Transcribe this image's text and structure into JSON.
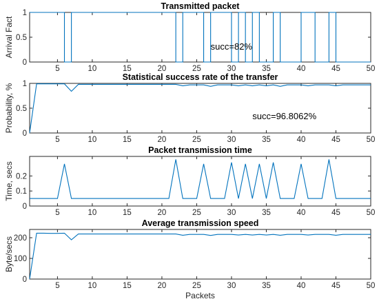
{
  "figure": {
    "xlabel": "Packets",
    "line_color": "#0072bd"
  },
  "chart_data": [
    {
      "type": "line",
      "title": "Transmitted packet",
      "xlabel": "",
      "ylabel": "Arrival Fact",
      "xlim": [
        1,
        50
      ],
      "ylim": [
        0,
        1
      ],
      "xticks": [
        5,
        10,
        15,
        20,
        25,
        30,
        35,
        40,
        45,
        50
      ],
      "yticks": [
        0,
        0.5,
        1
      ],
      "ytick_labels": [
        "0",
        "0.5",
        "1"
      ],
      "grid": false,
      "annotation": {
        "text": "succ=82%",
        "x": 27,
        "y": 0.25
      },
      "series": [
        {
          "x": [
            1,
            2,
            3,
            4,
            5,
            6,
            6,
            7,
            7,
            22,
            22,
            23,
            23,
            26,
            26,
            27,
            27,
            30,
            30,
            31,
            31,
            32,
            32,
            33,
            33,
            34,
            34,
            36,
            36,
            37,
            37,
            40,
            40,
            42,
            42,
            44,
            44,
            45,
            45,
            50
          ],
          "values": [
            1,
            1,
            1,
            1,
            1,
            1,
            0,
            0,
            1,
            1,
            0,
            0,
            1,
            1,
            0,
            0,
            1,
            1,
            0,
            0,
            1,
            1,
            0,
            0,
            1,
            1,
            0,
            0,
            1,
            1,
            0,
            0,
            1,
            1,
            0,
            0,
            1,
            1,
            0,
            0
          ]
        }
      ]
    },
    {
      "type": "line",
      "title": "Statistical success rate of the transfer",
      "xlabel": "",
      "ylabel": "Probability, %",
      "xlim": [
        1,
        50
      ],
      "ylim": [
        0,
        1
      ],
      "xticks": [
        5,
        10,
        15,
        20,
        25,
        30,
        35,
        40,
        45,
        50
      ],
      "yticks": [
        0,
        0.5,
        1
      ],
      "ytick_labels": [
        "0",
        "0.5",
        "1"
      ],
      "grid": false,
      "annotation": {
        "text": "succ=96.8062%",
        "x": 33,
        "y": 0.28
      },
      "series": [
        {
          "x": [
            1,
            2,
            3,
            4,
            5,
            6,
            7,
            8,
            9,
            10,
            11,
            12,
            13,
            14,
            15,
            16,
            17,
            18,
            19,
            20,
            21,
            22,
            23,
            24,
            25,
            26,
            27,
            28,
            29,
            30,
            31,
            32,
            33,
            34,
            35,
            36,
            37,
            38,
            39,
            40,
            41,
            42,
            43,
            44,
            45,
            46,
            47,
            48,
            49,
            50
          ],
          "values": [
            0,
            0.99,
            0.99,
            0.99,
            0.99,
            0.99,
            0.84,
            0.98,
            0.98,
            0.98,
            0.98,
            0.98,
            0.98,
            0.98,
            0.98,
            0.98,
            0.98,
            0.98,
            0.98,
            0.98,
            0.98,
            0.98,
            0.95,
            0.97,
            0.97,
            0.97,
            0.94,
            0.97,
            0.97,
            0.97,
            0.95,
            0.97,
            0.95,
            0.97,
            0.95,
            0.97,
            0.94,
            0.97,
            0.97,
            0.97,
            0.95,
            0.97,
            0.97,
            0.97,
            0.95,
            0.97,
            0.97,
            0.97,
            0.97,
            0.97
          ]
        }
      ]
    },
    {
      "type": "line",
      "title": "Packet transmission time",
      "xlabel": "",
      "ylabel": "Time, secs",
      "xlim": [
        1,
        50
      ],
      "ylim": [
        0,
        0.33
      ],
      "xticks": [
        5,
        10,
        15,
        20,
        25,
        30,
        35,
        40,
        45,
        50
      ],
      "yticks": [
        0,
        0.1,
        0.2
      ],
      "ytick_labels": [
        "0",
        "0.1",
        "0.2"
      ],
      "grid": false,
      "series": [
        {
          "x": [
            1,
            2,
            3,
            4,
            5,
            6,
            7,
            8,
            9,
            10,
            11,
            12,
            13,
            14,
            15,
            16,
            17,
            18,
            19,
            20,
            21,
            22,
            23,
            24,
            25,
            26,
            27,
            28,
            29,
            30,
            31,
            32,
            33,
            34,
            35,
            36,
            37,
            38,
            39,
            40,
            41,
            42,
            43,
            44,
            45,
            46,
            47,
            48,
            49,
            50
          ],
          "values": [
            0.05,
            0.05,
            0.05,
            0.05,
            0.05,
            0.28,
            0.05,
            0.05,
            0.05,
            0.05,
            0.05,
            0.05,
            0.05,
            0.05,
            0.05,
            0.05,
            0.05,
            0.05,
            0.05,
            0.05,
            0.05,
            0.31,
            0.05,
            0.05,
            0.05,
            0.28,
            0.05,
            0.05,
            0.05,
            0.29,
            0.05,
            0.28,
            0.05,
            0.28,
            0.05,
            0.29,
            0.05,
            0.05,
            0.05,
            0.28,
            0.05,
            0.05,
            0.05,
            0.31,
            0.05,
            0.05,
            0.05,
            0.05,
            0.05,
            0.05
          ]
        }
      ]
    },
    {
      "type": "line",
      "title": "Average transmission speed",
      "xlabel": "Packets",
      "ylabel": "Byte/secs",
      "xlim": [
        1,
        50
      ],
      "ylim": [
        0,
        240
      ],
      "xticks": [
        5,
        10,
        15,
        20,
        25,
        30,
        35,
        40,
        45,
        50
      ],
      "yticks": [
        0,
        100,
        200
      ],
      "ytick_labels": [
        "0",
        "100",
        "200"
      ],
      "grid": false,
      "series": [
        {
          "x": [
            1,
            2,
            3,
            4,
            5,
            6,
            7,
            8,
            9,
            10,
            11,
            12,
            13,
            14,
            15,
            16,
            17,
            18,
            19,
            20,
            21,
            22,
            23,
            24,
            25,
            26,
            27,
            28,
            29,
            30,
            31,
            32,
            33,
            34,
            35,
            36,
            37,
            38,
            39,
            40,
            41,
            42,
            43,
            44,
            45,
            46,
            47,
            48,
            49,
            50
          ],
          "values": [
            0,
            222,
            222,
            221,
            221,
            222,
            190,
            218,
            218,
            218,
            218,
            218,
            218,
            218,
            218,
            218,
            218,
            218,
            218,
            218,
            218,
            218,
            212,
            216,
            216,
            216,
            211,
            216,
            216,
            216,
            213,
            216,
            213,
            216,
            213,
            216,
            212,
            216,
            216,
            216,
            213,
            216,
            216,
            216,
            212,
            216,
            216,
            216,
            216,
            216
          ]
        }
      ]
    }
  ]
}
